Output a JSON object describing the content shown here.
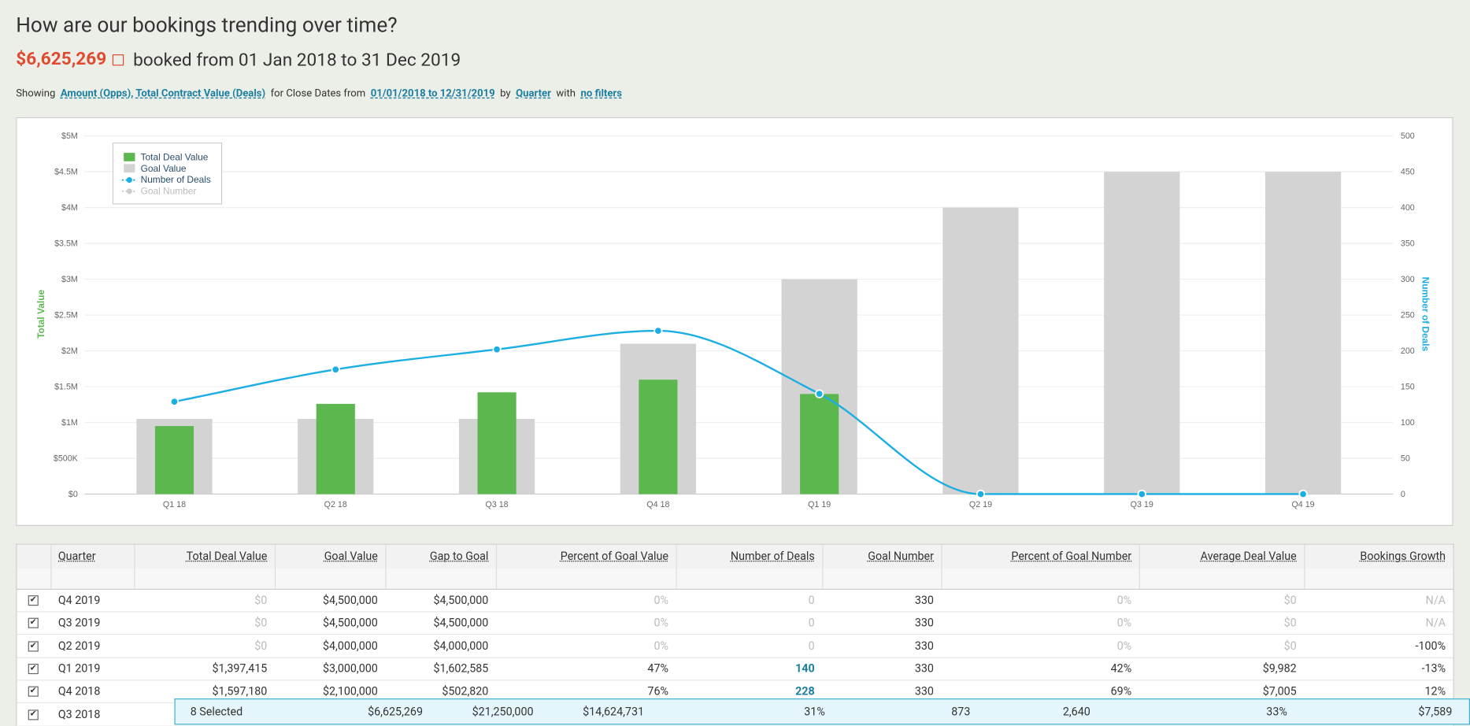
{
  "header": {
    "title": "How are our bookings trending over time?",
    "total": "$6,625,269",
    "period": "booked from 01 Jan 2018 to 31 Dec 2019"
  },
  "filters": {
    "showing": "Showing",
    "measures": "Amount (Opps), Total Contract Value (Deals)",
    "for": "for Close Dates from",
    "dates": "01/01/2018 to 12/31/2019",
    "by": "by",
    "group": "Quarter",
    "with": "with",
    "filter": "no filters"
  },
  "chart_data": {
    "type": "bar",
    "categories": [
      "Q1 18",
      "Q2 18",
      "Q3 18",
      "Q4 18",
      "Q1 19",
      "Q2 19",
      "Q3 19",
      "Q4 19"
    ],
    "y_label": "Total Value",
    "y2_label": "Number of Deals",
    "ylim": [
      0,
      5000000
    ],
    "yticks": [
      {
        "value": 0,
        "label": "$0"
      },
      {
        "value": 500000,
        "label": "$500K"
      },
      {
        "value": 1000000,
        "label": "$1M"
      },
      {
        "value": 1500000,
        "label": "$1.5M"
      },
      {
        "value": 2000000,
        "label": "$2M"
      },
      {
        "value": 2500000,
        "label": "$2.5M"
      },
      {
        "value": 3000000,
        "label": "$3M"
      },
      {
        "value": 3500000,
        "label": "$3.5M"
      },
      {
        "value": 4000000,
        "label": "$4M"
      },
      {
        "value": 4500000,
        "label": "$4.5M"
      },
      {
        "value": 5000000,
        "label": "$5M"
      }
    ],
    "y2lim": [
      0,
      500
    ],
    "y2ticks": [
      0,
      50,
      100,
      150,
      200,
      250,
      300,
      350,
      400,
      450,
      500
    ],
    "grid": true,
    "legend": "top-left",
    "series": [
      {
        "name": "Total Deal Value",
        "type": "bar",
        "color": "#5cb84e",
        "values": [
          950000,
          1260000,
          1420674,
          1597180,
          1397415,
          0,
          0,
          0
        ]
      },
      {
        "name": "Goal Value",
        "type": "bar",
        "color": "#d3d3d3",
        "values": [
          1050000,
          1050000,
          1050000,
          2100000,
          3000000,
          4000000,
          4500000,
          4500000
        ]
      },
      {
        "name": "Number of Deals",
        "type": "line",
        "axis": "y2",
        "color": "#1aaee3",
        "values": [
          129,
          174,
          202,
          228,
          140,
          0,
          0,
          0
        ]
      },
      {
        "name": "Goal Number",
        "type": "line",
        "axis": "y2",
        "color": "#cccccc",
        "hidden": true
      }
    ]
  },
  "table": {
    "columns": [
      "Quarter",
      "Total Deal Value",
      "Goal Value",
      "Gap to Goal",
      "Percent of Goal Value",
      "Number of Deals",
      "Goal Number",
      "Percent of Goal Number",
      "Average Deal Value",
      "Bookings Growth"
    ],
    "rows": [
      [
        "Q4 2019",
        "$0",
        "$4,500,000",
        "$4,500,000",
        "0%",
        "0",
        "330",
        "0%",
        "$0",
        "N/A"
      ],
      [
        "Q3 2019",
        "$0",
        "$4,500,000",
        "$4,500,000",
        "0%",
        "0",
        "330",
        "0%",
        "$0",
        "N/A"
      ],
      [
        "Q2 2019",
        "$0",
        "$4,000,000",
        "$4,000,000",
        "0%",
        "0",
        "330",
        "0%",
        "$0",
        "-100%"
      ],
      [
        "Q1 2019",
        "$1,397,415",
        "$3,000,000",
        "$1,602,585",
        "47%",
        "140",
        "330",
        "42%",
        "$9,982",
        "-13%"
      ],
      [
        "Q4 2018",
        "$1,597,180",
        "$2,100,000",
        "$502,820",
        "76%",
        "228",
        "330",
        "69%",
        "$7,005",
        "12%"
      ],
      [
        "Q3 2018"
      ]
    ],
    "summary": [
      "8 Selected",
      "$6,625,269",
      "$21,250,000",
      "$14,624,731",
      "31%",
      "873",
      "2,640",
      "33%",
      "$7,589"
    ]
  }
}
